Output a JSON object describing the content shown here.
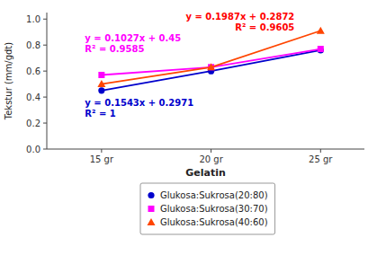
{
  "chart_data": {
    "type": "line",
    "x": [
      15,
      20,
      25
    ],
    "series": [
      {
        "name": "Glukosa:Sukrosa(20:80)",
        "color": "#0000CC",
        "marker": "circle",
        "values": [
          0.45,
          0.6,
          0.76
        ]
      },
      {
        "name": "Glukosa:Sukrosa(30:70)",
        "color": "#FF00FF",
        "marker": "square",
        "values": [
          0.57,
          0.63,
          0.77
        ]
      },
      {
        "name": "Glukosa:Sukrosa(40:60)",
        "color": "#FF4500",
        "marker": "triangle",
        "values": [
          0.5,
          0.63,
          0.91
        ]
      }
    ],
    "x_label": "Gelatin",
    "y_label": "Tekstur (mm/gdt)",
    "xlim": [
      12.5,
      27
    ],
    "xticks": [
      {
        "value": 15,
        "label": "15 gr"
      },
      {
        "value": 20,
        "label": "20 gr"
      },
      {
        "value": 25,
        "label": "25 gr"
      }
    ],
    "ylim": [
      0.0,
      1.05
    ],
    "yticks": [
      {
        "value": 0.0,
        "label": "0.0"
      },
      0.2,
      0.4,
      0.6,
      0.8,
      {
        "value": 1.0,
        "label": "1.0"
      }
    ],
    "annotations": [
      {
        "text": "y = 0.1543x + 0.2971\nR² = 1",
        "color": "#0000CC"
      },
      {
        "text": "y = 0.1027x + 0.45\nR² = 0.9585",
        "color": "#FF00FF"
      },
      {
        "text": "y = 0.1987x + 0.2872\nR² = 0.9605",
        "color": "#FF0000"
      }
    ],
    "legend": "bottom",
    "grid": false
  }
}
